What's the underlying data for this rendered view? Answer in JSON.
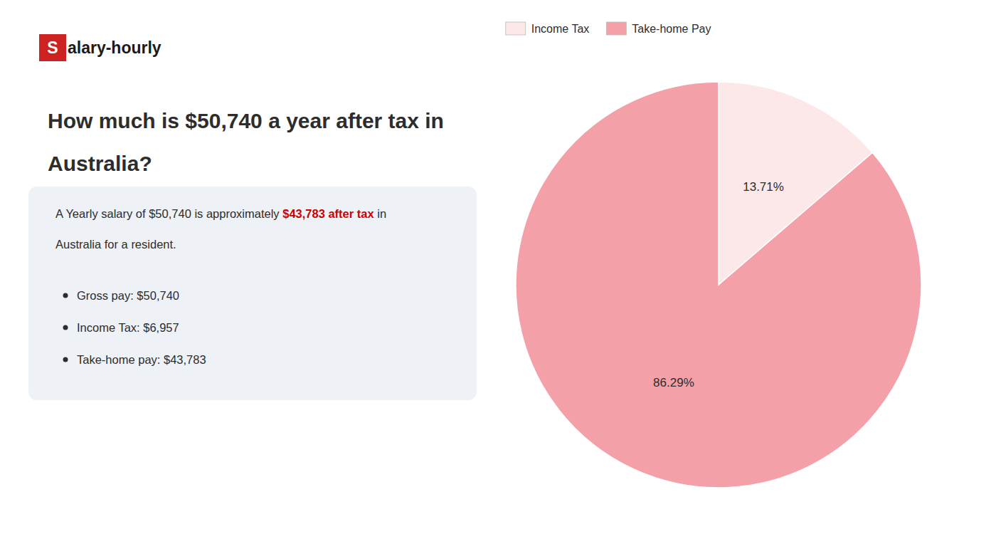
{
  "chart_data": {
    "type": "pie",
    "title": [
      "How much is $50,740 a year after tax in",
      "Australia?"
    ],
    "annotations": [
      "S",
      "alary-hourly",
      "A Yearly salary of $50,740 is approximately ",
      "$43,783 after tax",
      " in",
      "Australia for a resident.",
      "Gross pay: $50,740",
      "Income Tax: $6,957",
      "Take-home pay: $43,783"
    ],
    "categories": [
      "Income Tax",
      "Take-home Pay"
    ],
    "values": [
      13.71,
      86.29
    ],
    "value_labels": [
      "13.71%",
      "86.29%"
    ],
    "colors": [
      "#fce8e8",
      "#f4a0a8"
    ],
    "data_labels": true,
    "legend": "upper left"
  }
}
